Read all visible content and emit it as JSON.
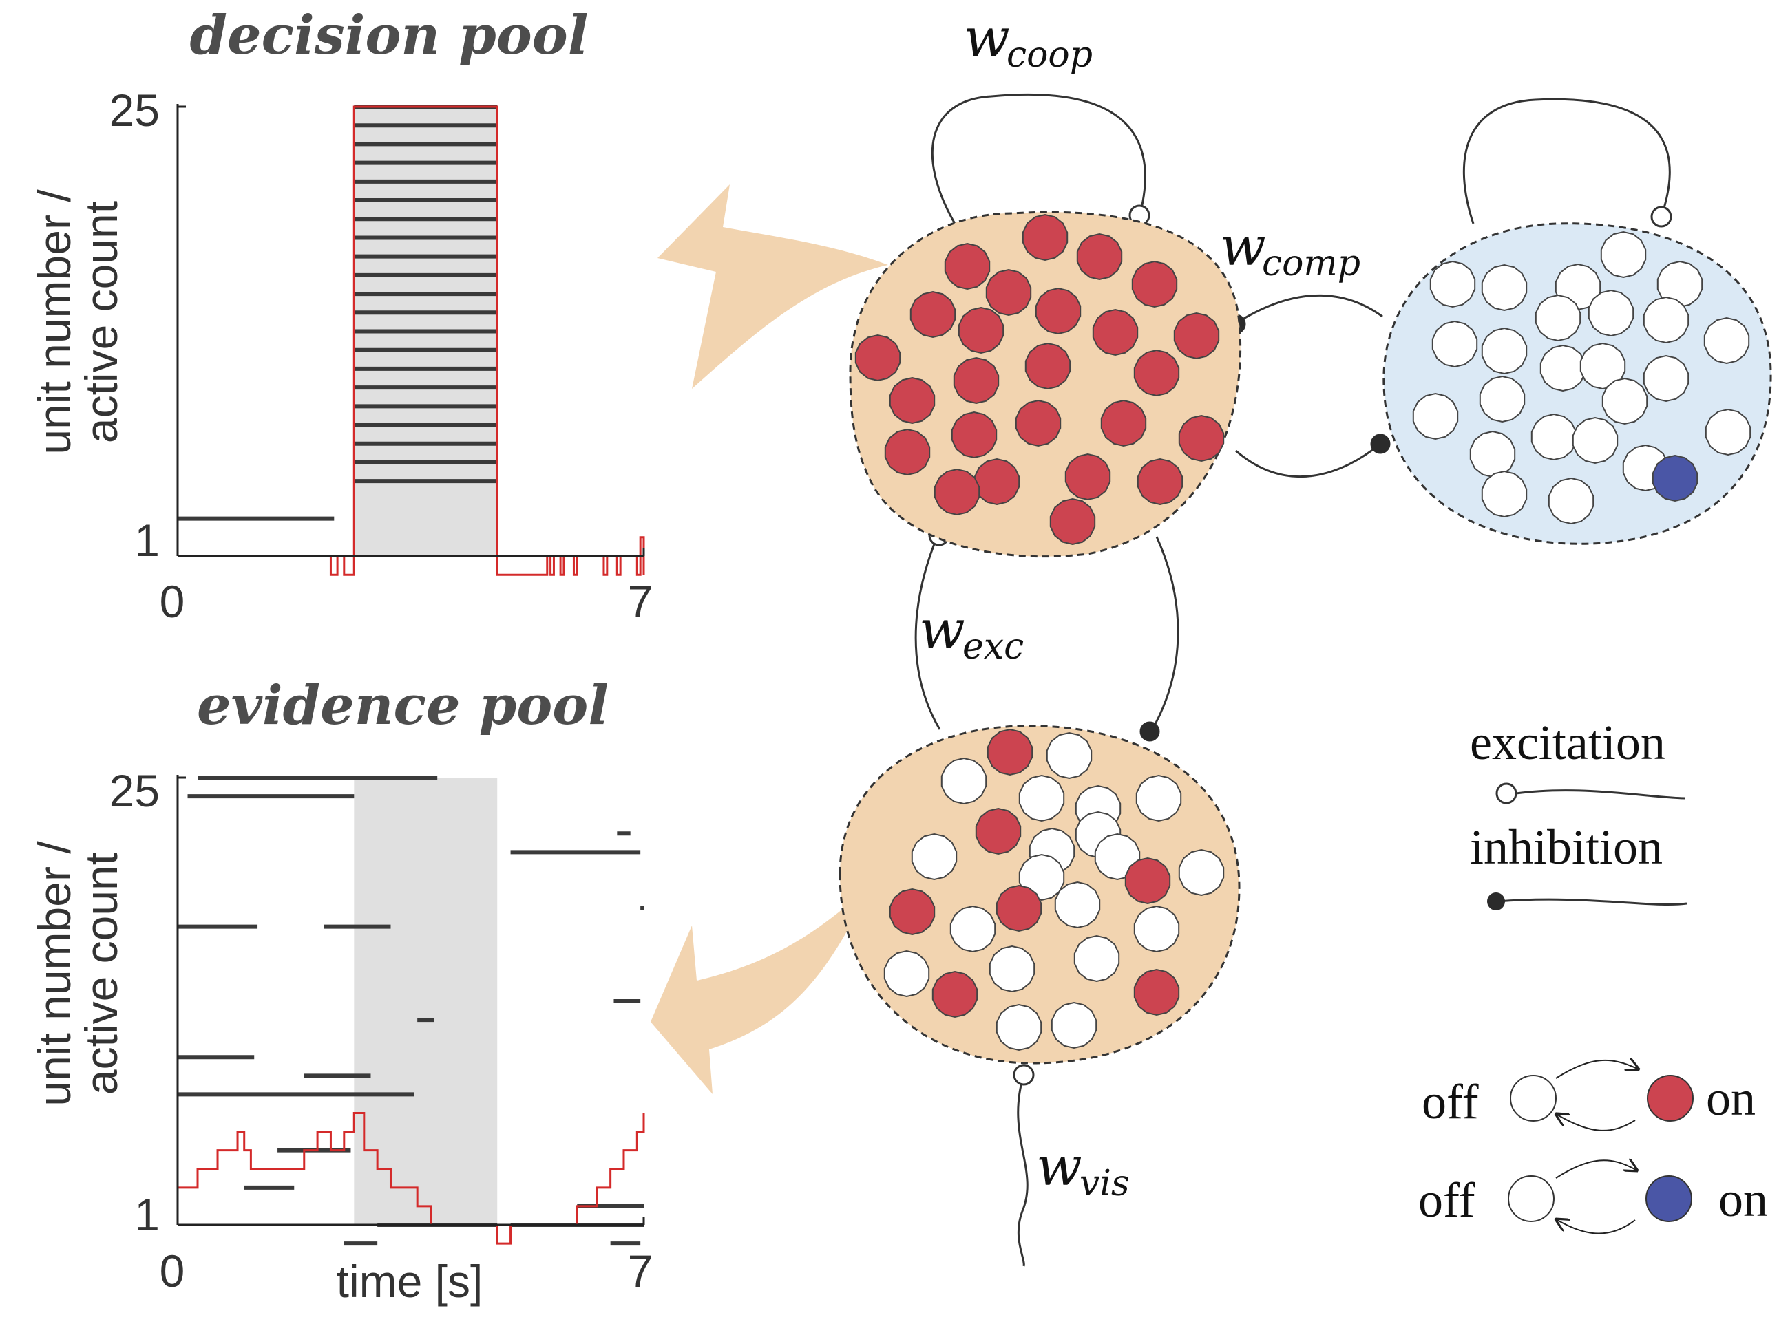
{
  "decision_panel": {
    "title": "decision pool",
    "ylabel_line1": "unit number /",
    "ylabel_line2": "active count",
    "ytick_top": "25",
    "ytick_bottom": "1",
    "xtick_left": "0",
    "xtick_right": "7"
  },
  "evidence_panel": {
    "title": "evidence pool",
    "ylabel_line1": "unit number /",
    "ylabel_line2": "active count",
    "ytick_top": "25",
    "ytick_bottom": "1",
    "xtick_left": "0",
    "xtick_right": "7",
    "xlabel": "time [s]"
  },
  "network": {
    "w_coop": "coop",
    "w_comp": "comp",
    "w_exc": "exc",
    "w_vis": "vis",
    "w_symbol": "w"
  },
  "legend": {
    "excitation": "excitation",
    "inhibition": "inhibition",
    "off_label_1": "off",
    "on_label_1": "on",
    "off_label_2": "off",
    "on_label_2": "on"
  },
  "colors": {
    "unit_on_red": "#cc4450",
    "unit_on_blue": "#4a56a6",
    "unit_off": "#ffffff",
    "pool_orange": "#f2d4b0",
    "pool_blue": "#dbe9f5",
    "trace_red": "#d42a2a",
    "raster": "#3a3a3a",
    "shade": "#e0e0e0"
  },
  "chart_data": [
    {
      "type": "raster",
      "title": "decision pool",
      "xlim": [
        0,
        7
      ],
      "ylim": [
        1,
        25
      ],
      "shaded_interval": [
        2.65,
        4.8
      ],
      "spike_bars": [
        {
          "unit": 3,
          "t": [
            0,
            2.35
          ]
        },
        {
          "unit": 5,
          "t": [
            2.65,
            4.8
          ]
        },
        {
          "unit": 6,
          "t": [
            2.65,
            4.8
          ]
        },
        {
          "unit": 7,
          "t": [
            2.65,
            4.8
          ]
        },
        {
          "unit": 8,
          "t": [
            2.65,
            4.8
          ]
        },
        {
          "unit": 9,
          "t": [
            2.65,
            4.8
          ]
        },
        {
          "unit": 10,
          "t": [
            2.65,
            4.8
          ]
        },
        {
          "unit": 11,
          "t": [
            2.65,
            4.8
          ]
        },
        {
          "unit": 12,
          "t": [
            2.65,
            4.8
          ]
        },
        {
          "unit": 13,
          "t": [
            2.65,
            4.8
          ]
        },
        {
          "unit": 14,
          "t": [
            2.65,
            4.8
          ]
        },
        {
          "unit": 15,
          "t": [
            2.65,
            4.8
          ]
        },
        {
          "unit": 16,
          "t": [
            2.65,
            4.8
          ]
        },
        {
          "unit": 17,
          "t": [
            2.65,
            4.8
          ]
        },
        {
          "unit": 18,
          "t": [
            2.65,
            4.8
          ]
        },
        {
          "unit": 19,
          "t": [
            2.65,
            4.8
          ]
        },
        {
          "unit": 20,
          "t": [
            2.65,
            4.8
          ]
        },
        {
          "unit": 21,
          "t": [
            2.65,
            4.8
          ]
        },
        {
          "unit": 22,
          "t": [
            2.65,
            4.8
          ]
        },
        {
          "unit": 23,
          "t": [
            2.65,
            4.8
          ]
        },
        {
          "unit": 24,
          "t": [
            2.65,
            4.8
          ]
        },
        {
          "unit": 25,
          "t": [
            2.65,
            4.8
          ]
        }
      ],
      "active_count": {
        "t": [
          0,
          2.3,
          2.3,
          2.4,
          2.4,
          2.5,
          2.5,
          2.65,
          2.65,
          4.8,
          4.8,
          5.5,
          5.55,
          5.6,
          5.65,
          5.75,
          5.8,
          5.95,
          6.0,
          6.4,
          6.45,
          6.6,
          6.65,
          6.9,
          6.95,
          7.0
        ],
        "count": [
          1,
          1,
          0,
          0,
          1,
          1,
          0,
          0,
          25,
          25,
          0,
          0,
          1,
          0,
          1,
          0,
          1,
          0,
          1,
          0,
          1,
          0,
          1,
          0,
          2,
          0
        ]
      }
    },
    {
      "type": "raster",
      "title": "evidence pool",
      "xlabel": "time [s]",
      "xlim": [
        0,
        7
      ],
      "ylim": [
        1,
        25
      ],
      "shaded_interval": [
        2.65,
        4.8
      ],
      "spike_bars": [
        {
          "unit": 25,
          "t": [
            0.3,
            3.9
          ]
        },
        {
          "unit": 24,
          "t": [
            0.15,
            2.65
          ]
        },
        {
          "unit": 22,
          "t": [
            6.6,
            6.8
          ]
        },
        {
          "unit": 21,
          "t": [
            5.0,
            6.95
          ]
        },
        {
          "unit": 18,
          "t": [
            6.95,
            7.0
          ]
        },
        {
          "unit": 17,
          "t": [
            0.0,
            1.2
          ]
        },
        {
          "unit": 17,
          "t": [
            2.2,
            3.2
          ]
        },
        {
          "unit": 13,
          "t": [
            6.55,
            6.95
          ]
        },
        {
          "unit": 12,
          "t": [
            3.6,
            3.85
          ]
        },
        {
          "unit": 10,
          "t": [
            0.0,
            1.15
          ]
        },
        {
          "unit": 9,
          "t": [
            1.9,
            2.9
          ]
        },
        {
          "unit": 8,
          "t": [
            0.0,
            3.55
          ]
        },
        {
          "unit": 5,
          "t": [
            1.5,
            2.6
          ]
        },
        {
          "unit": 3,
          "t": [
            1.0,
            1.75
          ]
        },
        {
          "unit": 2,
          "t": [
            6.0,
            7.0
          ]
        },
        {
          "unit": 1,
          "t": [
            3.0,
            4.8
          ]
        },
        {
          "unit": 1,
          "t": [
            5.0,
            7.0
          ]
        },
        {
          "unit": 0,
          "t": [
            2.5,
            3.0
          ]
        },
        {
          "unit": 0,
          "t": [
            6.5,
            6.95
          ]
        }
      ],
      "active_count": {
        "t": [
          0,
          0.1,
          0.3,
          0.6,
          0.9,
          1.0,
          1.1,
          1.2,
          1.5,
          1.9,
          2.1,
          2.3,
          2.5,
          2.65,
          2.8,
          3.0,
          3.2,
          3.4,
          3.6,
          3.8,
          4.0,
          4.8,
          4.9,
          5.0,
          5.3,
          6.0,
          6.3,
          6.5,
          6.7,
          6.9,
          7.0
        ],
        "count": [
          3,
          3,
          4,
          5,
          6,
          5,
          4,
          4,
          4,
          5,
          6,
          5,
          6,
          7,
          5,
          4,
          3,
          3,
          2,
          1,
          1,
          0,
          0,
          1,
          1,
          2,
          3,
          4,
          5,
          6,
          7
        ]
      }
    }
  ]
}
